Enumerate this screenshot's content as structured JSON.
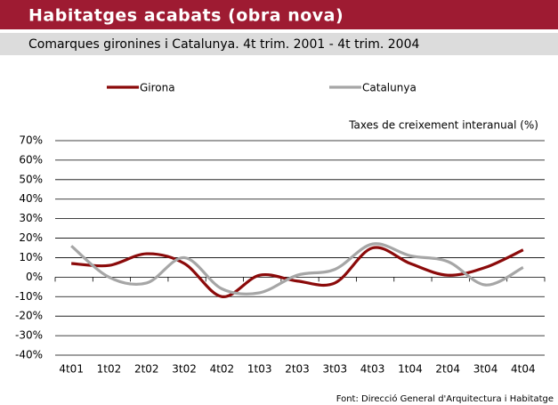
{
  "chart_data": {
    "type": "line",
    "title": "Habitatges acabats (obra nova)",
    "subtitle": "Comarques gironines i Catalunya. 4t trim. 2001 - 4t trim. 2004",
    "y_label": "Taxes de creixement interanual (%)",
    "source": "Font: Direcció General d'Arquitectura i Habitatge",
    "categories": [
      "4t01",
      "1t02",
      "2t02",
      "3t02",
      "4t02",
      "1t03",
      "2t03",
      "3t03",
      "4t03",
      "1t04",
      "2t04",
      "3t04",
      "4t04"
    ],
    "series": [
      {
        "name": "Girona",
        "color": "#8b0a0a",
        "values": [
          7,
          6,
          12,
          7,
          -10,
          1,
          -2,
          -3,
          15,
          7,
          1,
          5,
          14
        ]
      },
      {
        "name": "Catalunya",
        "color": "#a6a6a6",
        "values": [
          16,
          0,
          -3,
          10,
          -6,
          -8,
          1,
          4,
          17,
          11,
          8,
          -4,
          5
        ]
      }
    ],
    "ylim": [
      -40,
      70
    ],
    "yticks": [
      {
        "value": -40,
        "label": "-40%"
      },
      {
        "value": -30,
        "label": "-30%"
      },
      {
        "value": -20,
        "label": "-20%"
      },
      {
        "value": -10,
        "label": "-10%"
      },
      {
        "value": 0,
        "label": "0%"
      },
      {
        "value": 10,
        "label": "10%"
      },
      {
        "value": 20,
        "label": "20%"
      },
      {
        "value": 30,
        "label": "30%"
      },
      {
        "value": 40,
        "label": "40%"
      },
      {
        "value": 50,
        "label": "50%"
      },
      {
        "value": 60,
        "label": "60%"
      },
      {
        "value": 70,
        "label": "70%"
      }
    ],
    "grid": true
  }
}
